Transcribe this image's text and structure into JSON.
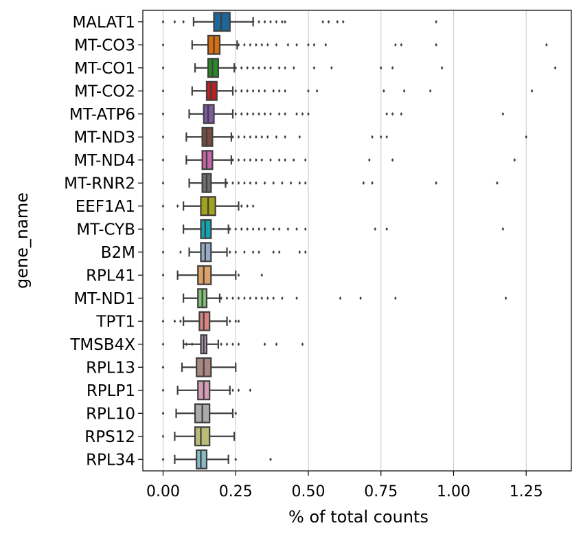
{
  "chart_data": {
    "type": "box",
    "xlabel": "% of total counts",
    "ylabel": "gene_name",
    "xlim": [
      -0.14,
      1.41
    ],
    "xticks": [
      0.0,
      0.25,
      0.5,
      0.75,
      1.0,
      1.25
    ],
    "xtick_labels": [
      "0.00",
      "0.25",
      "0.50",
      "0.75",
      "1.00",
      "1.25"
    ],
    "grid": "x",
    "series": [
      {
        "gene": "MALAT1",
        "color": "#1f77b4",
        "whisker_low": 0.105,
        "q1": 0.175,
        "median": 0.2,
        "q3": 0.23,
        "whisker_high": 0.31,
        "outliers": [
          0.0,
          0.04,
          0.07,
          0.31,
          0.33,
          0.35,
          0.37,
          0.39,
          0.41,
          0.42,
          0.55,
          0.57,
          0.6,
          0.62,
          0.94
        ]
      },
      {
        "gene": "MT-CO3",
        "color": "#ff7f0e",
        "whisker_low": 0.1,
        "q1": 0.155,
        "median": 0.175,
        "q3": 0.195,
        "whisker_high": 0.255,
        "outliers": [
          0.0,
          0.26,
          0.28,
          0.3,
          0.32,
          0.34,
          0.36,
          0.39,
          0.43,
          0.46,
          0.5,
          0.52,
          0.56,
          0.8,
          0.82,
          0.94,
          1.32
        ]
      },
      {
        "gene": "MT-CO1",
        "color": "#2ca02c",
        "whisker_low": 0.11,
        "q1": 0.155,
        "median": 0.17,
        "q3": 0.19,
        "whisker_high": 0.245,
        "outliers": [
          0.0,
          0.25,
          0.27,
          0.29,
          0.31,
          0.33,
          0.35,
          0.37,
          0.4,
          0.42,
          0.45,
          0.52,
          0.58,
          0.75,
          0.79,
          0.96,
          1.35
        ]
      },
      {
        "gene": "MT-CO2",
        "color": "#d62728",
        "whisker_low": 0.1,
        "q1": 0.15,
        "median": 0.165,
        "q3": 0.185,
        "whisker_high": 0.24,
        "outliers": [
          0.0,
          0.25,
          0.27,
          0.29,
          0.31,
          0.33,
          0.35,
          0.38,
          0.4,
          0.42,
          0.5,
          0.53,
          0.76,
          0.83,
          0.92,
          1.27
        ]
      },
      {
        "gene": "MT-ATP6",
        "color": "#9467bd",
        "whisker_low": 0.09,
        "q1": 0.14,
        "median": 0.155,
        "q3": 0.175,
        "whisker_high": 0.24,
        "outliers": [
          0.0,
          0.25,
          0.27,
          0.29,
          0.31,
          0.33,
          0.35,
          0.37,
          0.4,
          0.42,
          0.46,
          0.48,
          0.5,
          0.77,
          0.79,
          0.82,
          1.17
        ]
      },
      {
        "gene": "MT-ND3",
        "color": "#8c564b",
        "whisker_low": 0.08,
        "q1": 0.135,
        "median": 0.15,
        "q3": 0.17,
        "whisker_high": 0.235,
        "outliers": [
          0.0,
          0.24,
          0.26,
          0.28,
          0.3,
          0.32,
          0.34,
          0.36,
          0.39,
          0.42,
          0.47,
          0.72,
          0.75,
          0.77,
          1.25
        ]
      },
      {
        "gene": "MT-ND4",
        "color": "#e377c2",
        "whisker_low": 0.08,
        "q1": 0.135,
        "median": 0.15,
        "q3": 0.17,
        "whisker_high": 0.235,
        "outliers": [
          0.0,
          0.24,
          0.26,
          0.28,
          0.3,
          0.32,
          0.34,
          0.37,
          0.4,
          0.42,
          0.45,
          0.49,
          0.71,
          0.79,
          1.21
        ]
      },
      {
        "gene": "MT-RNR2",
        "color": "#7f7f7f",
        "whisker_low": 0.09,
        "q1": 0.135,
        "median": 0.15,
        "q3": 0.165,
        "whisker_high": 0.215,
        "outliers": [
          0.0,
          0.22,
          0.24,
          0.26,
          0.28,
          0.3,
          0.32,
          0.35,
          0.38,
          0.41,
          0.44,
          0.47,
          0.49,
          0.69,
          0.72,
          0.94,
          1.15
        ]
      },
      {
        "gene": "EEF1A1",
        "color": "#bcbd22",
        "whisker_low": 0.07,
        "q1": 0.13,
        "median": 0.155,
        "q3": 0.18,
        "whisker_high": 0.26,
        "outliers": [
          0.0,
          0.05,
          0.27,
          0.29,
          0.31
        ]
      },
      {
        "gene": "MT-CYB",
        "color": "#17becf",
        "whisker_low": 0.07,
        "q1": 0.13,
        "median": 0.145,
        "q3": 0.165,
        "whisker_high": 0.225,
        "outliers": [
          0.0,
          0.23,
          0.25,
          0.27,
          0.29,
          0.31,
          0.33,
          0.35,
          0.38,
          0.4,
          0.43,
          0.46,
          0.49,
          0.73,
          0.77,
          1.17
        ]
      },
      {
        "gene": "B2M",
        "color": "#aec7e8",
        "whisker_low": 0.09,
        "q1": 0.13,
        "median": 0.145,
        "q3": 0.165,
        "whisker_high": 0.22,
        "outliers": [
          0.0,
          0.06,
          0.23,
          0.25,
          0.28,
          0.31,
          0.33,
          0.38,
          0.4,
          0.47,
          0.49
        ]
      },
      {
        "gene": "RPL41",
        "color": "#ffbb78",
        "whisker_low": 0.05,
        "q1": 0.12,
        "median": 0.14,
        "q3": 0.165,
        "whisker_high": 0.25,
        "outliers": [
          0.0,
          0.26,
          0.34
        ]
      },
      {
        "gene": "MT-ND1",
        "color": "#98df8a",
        "whisker_low": 0.07,
        "q1": 0.12,
        "median": 0.135,
        "q3": 0.15,
        "whisker_high": 0.195,
        "outliers": [
          0.0,
          0.2,
          0.22,
          0.24,
          0.26,
          0.28,
          0.3,
          0.32,
          0.34,
          0.36,
          0.38,
          0.41,
          0.46,
          0.61,
          0.68,
          0.8,
          1.18
        ]
      },
      {
        "gene": "TPT1",
        "color": "#ff9896",
        "whisker_low": 0.07,
        "q1": 0.125,
        "median": 0.14,
        "q3": 0.16,
        "whisker_high": 0.22,
        "outliers": [
          0.0,
          0.04,
          0.06,
          0.23,
          0.25,
          0.26
        ]
      },
      {
        "gene": "TMSB4X",
        "color": "#c5b0d5",
        "whisker_low": 0.07,
        "q1": 0.13,
        "median": 0.14,
        "q3": 0.15,
        "whisker_high": 0.19,
        "outliers": [
          0.0,
          0.08,
          0.1,
          0.2,
          0.22,
          0.24,
          0.26,
          0.35,
          0.39,
          0.48
        ]
      },
      {
        "gene": "RPL13",
        "color": "#c49c94",
        "whisker_low": 0.065,
        "q1": 0.115,
        "median": 0.14,
        "q3": 0.165,
        "whisker_high": 0.25,
        "outliers": [
          0.0
        ]
      },
      {
        "gene": "RPLP1",
        "color": "#f7b6d2",
        "whisker_low": 0.05,
        "q1": 0.12,
        "median": 0.14,
        "q3": 0.16,
        "whisker_high": 0.23,
        "outliers": [
          0.0,
          0.24,
          0.26,
          0.3
        ]
      },
      {
        "gene": "RPL10",
        "color": "#c7c7c7",
        "whisker_low": 0.045,
        "q1": 0.11,
        "median": 0.135,
        "q3": 0.16,
        "whisker_high": 0.24,
        "outliers": [
          0.0,
          0.25
        ]
      },
      {
        "gene": "RPS12",
        "color": "#dbdb8d",
        "whisker_low": 0.04,
        "q1": 0.11,
        "median": 0.13,
        "q3": 0.16,
        "whisker_high": 0.245,
        "outliers": [
          0.0
        ]
      },
      {
        "gene": "RPL34",
        "color": "#9edae5",
        "whisker_low": 0.04,
        "q1": 0.115,
        "median": 0.13,
        "q3": 0.15,
        "whisker_high": 0.225,
        "outliers": [
          0.0,
          0.25,
          0.37
        ]
      }
    ]
  }
}
